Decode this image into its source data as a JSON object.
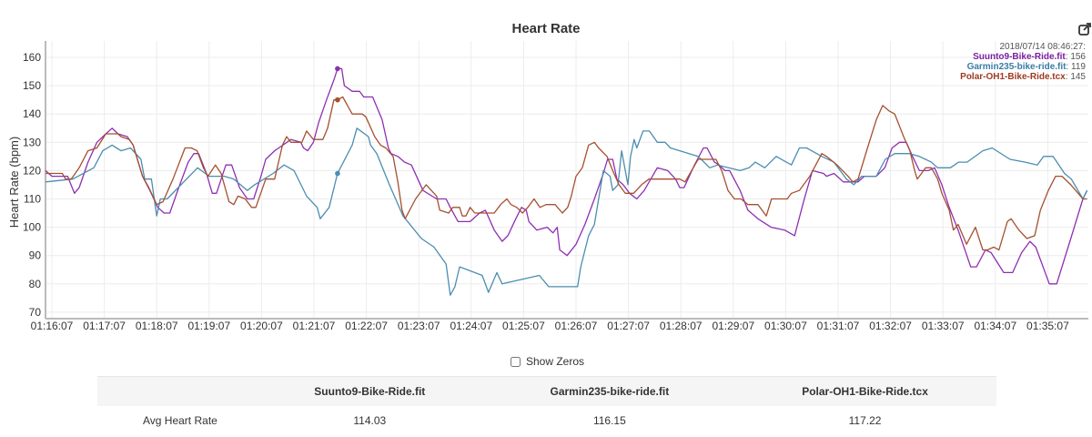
{
  "chart_data": {
    "type": "line",
    "title": "Heart Rate",
    "xlabel": "",
    "ylabel": "Heart Rate (bpm)",
    "x_units": "minutes after 01:16:07",
    "xlim": [
      -0.12,
      19.75
    ],
    "ylim": [
      68,
      165
    ],
    "yticks": [
      70,
      80,
      90,
      100,
      110,
      120,
      130,
      140,
      150,
      160
    ],
    "xtick_labels": [
      "01:16:07",
      "01:17:07",
      "01:18:07",
      "01:19:07",
      "01:20:07",
      "01:21:07",
      "01:22:07",
      "01:23:07",
      "01:24:07",
      "01:25:07",
      "01:26:07",
      "01:27:07",
      "01:28:07",
      "01:29:07",
      "01:30:07",
      "01:31:07",
      "01:32:07",
      "01:33:07",
      "01:34:07",
      "01:35:07"
    ],
    "grid": true,
    "legend_position": "top-right",
    "hover": {
      "time": "2018/07/14 08:46:27:",
      "x": 5.45,
      "values": [
        156,
        119,
        145
      ]
    },
    "series": [
      {
        "name": "Suunto9-Bike-Ride.fit",
        "color": "#8e2fb3",
        "label_color": "#7b1fa2",
        "x": [
          -0.12,
          0,
          0.3,
          0.43,
          0.52,
          0.69,
          0.86,
          1.03,
          1.15,
          1.26,
          1.44,
          1.55,
          1.73,
          1.87,
          2.02,
          2.14,
          2.25,
          2.42,
          2.6,
          2.71,
          2.8,
          2.95,
          3.06,
          3.14,
          3.32,
          3.43,
          3.58,
          3.73,
          3.85,
          3.99,
          4.08,
          4.25,
          4.33,
          4.56,
          4.75,
          4.8,
          4.88,
          4.99,
          5.09,
          5.24,
          5.38,
          5.45,
          5.53,
          5.58,
          5.73,
          5.87,
          5.95,
          6.12,
          6.3,
          6.42,
          6.47,
          6.6,
          6.73,
          6.86,
          7.08,
          7.34,
          7.52,
          7.6,
          7.75,
          7.98,
          8.16,
          8.27,
          8.44,
          8.59,
          8.7,
          8.85,
          8.96,
          9.05,
          9.1,
          9.25,
          9.45,
          9.56,
          9.64,
          9.69,
          9.83,
          10.0,
          10.17,
          10.35,
          10.52,
          10.6,
          10.7,
          10.78,
          10.9,
          11.02,
          11.16,
          11.3,
          11.55,
          11.75,
          11.9,
          11.98,
          12.06,
          12.26,
          12.43,
          12.5,
          12.64,
          12.73,
          12.84,
          12.93,
          13.13,
          13.28,
          13.47,
          13.72,
          13.98,
          14.17,
          14.34,
          14.51,
          14.72,
          14.78,
          14.92,
          15.1,
          15.38,
          15.5,
          15.73,
          15.89,
          16.03,
          16.17,
          16.3,
          16.42,
          16.55,
          16.72,
          16.84,
          16.98,
          17.12,
          17.29,
          17.53,
          17.64,
          17.81,
          17.92,
          18.16,
          18.33,
          18.5,
          18.66,
          18.77,
          19.03,
          19.17,
          19.44,
          19.67,
          19.75
        ],
        "values": [
          120,
          118,
          118,
          112,
          114,
          123,
          130,
          133,
          135,
          133,
          132,
          129,
          118,
          113,
          107,
          105,
          105,
          114,
          123,
          126,
          126,
          119,
          112,
          112,
          122,
          122,
          114,
          110,
          110,
          118,
          124,
          127,
          128,
          131,
          130,
          128,
          127,
          130,
          137,
          145,
          152,
          156,
          156,
          150,
          148,
          148,
          146,
          146,
          138,
          128,
          126,
          125,
          123,
          122,
          113,
          110,
          110,
          107,
          102,
          102,
          105,
          106,
          99,
          95,
          97,
          103,
          107,
          106,
          102,
          99,
          100,
          98,
          100,
          92,
          90,
          94,
          101,
          110,
          119,
          124,
          124,
          117,
          115,
          112,
          110,
          113,
          121,
          120,
          117,
          114,
          114,
          122,
          128,
          128,
          123,
          122,
          120,
          120,
          113,
          106,
          103,
          100,
          99,
          97,
          109,
          120,
          119,
          118,
          119,
          116,
          116,
          118,
          118,
          121,
          128,
          130,
          130,
          125,
          120,
          120,
          121,
          115,
          107,
          99,
          86,
          86,
          92,
          91,
          84,
          84,
          91,
          95,
          93,
          80,
          80,
          96,
          110,
          113
        ]
      },
      {
        "name": "Garmin235-bike-ride.fit",
        "color": "#4b8db0",
        "label_color": "#3a7ca5",
        "x": [
          -0.12,
          0.4,
          0.8,
          0.97,
          1.15,
          1.32,
          1.5,
          1.7,
          1.77,
          1.9,
          2.0,
          2.07,
          2.2,
          2.78,
          3.0,
          3.29,
          3.47,
          3.73,
          3.87,
          4.22,
          4.43,
          4.62,
          4.86,
          5.06,
          5.12,
          5.29,
          5.45,
          5.73,
          5.82,
          6.04,
          6.08,
          6.2,
          6.44,
          6.7,
          7.05,
          7.29,
          7.52,
          7.6,
          7.69,
          7.78,
          8.21,
          8.33,
          8.49,
          8.59,
          9.3,
          9.48,
          10.03,
          10.09,
          10.24,
          10.35,
          10.52,
          10.65,
          10.7,
          10.8,
          10.87,
          10.99,
          11.04,
          11.11,
          11.16,
          11.28,
          11.4,
          11.55,
          11.7,
          11.8,
          11.98,
          12.33,
          12.55,
          12.7,
          13.13,
          13.3,
          13.42,
          13.6,
          13.82,
          14.11,
          14.26,
          14.4,
          14.69,
          14.92,
          15.16,
          15.3,
          15.45,
          15.73,
          15.9,
          16.08,
          16.36,
          16.55,
          16.78,
          16.9,
          17.14,
          17.3,
          17.46,
          17.76,
          17.94,
          18.28,
          18.57,
          18.8,
          18.92,
          19.1,
          19.32,
          19.45,
          19.67,
          19.75
        ],
        "values": [
          116,
          117,
          121,
          127,
          129,
          127,
          128,
          124,
          117,
          117,
          104,
          110,
          110,
          121,
          118,
          118,
          117,
          113,
          115,
          119,
          122,
          120,
          111,
          107,
          103,
          107,
          119,
          129,
          135,
          132,
          129,
          126,
          115,
          104,
          96,
          93,
          87,
          76,
          79,
          86,
          83,
          77,
          84,
          80,
          83,
          79,
          79,
          86,
          97,
          101,
          120,
          118,
          113,
          115,
          127,
          115,
          125,
          131,
          128,
          134,
          134,
          130,
          130,
          128,
          127,
          125,
          121,
          122,
          120,
          121,
          123,
          121,
          125,
          122,
          128,
          128,
          125,
          123,
          117,
          115,
          118,
          118,
          124,
          126,
          126,
          125,
          123,
          121,
          121,
          123,
          123,
          127,
          128,
          124,
          123,
          122,
          125,
          125,
          119,
          117,
          110,
          113
        ]
      },
      {
        "name": "Polar-OH1-Bike-Ride.tcx",
        "color": "#a5502f",
        "label_color": "#9c3a1f",
        "x": [
          -0.12,
          0.2,
          0.26,
          0.37,
          0.52,
          0.69,
          0.86,
          1.03,
          1.26,
          1.32,
          1.48,
          1.55,
          1.73,
          1.85,
          2.0,
          2.12,
          2.31,
          2.54,
          2.66,
          2.77,
          2.89,
          2.98,
          3.12,
          3.23,
          3.38,
          3.47,
          3.55,
          3.69,
          3.81,
          3.89,
          4.08,
          4.25,
          4.4,
          4.48,
          4.56,
          4.77,
          4.86,
          4.99,
          5.17,
          5.26,
          5.38,
          5.45,
          5.55,
          5.73,
          5.92,
          5.99,
          6.16,
          6.27,
          6.37,
          6.51,
          6.6,
          6.68,
          6.74,
          6.94,
          7.14,
          7.34,
          7.4,
          7.57,
          7.65,
          7.78,
          7.83,
          7.9,
          7.98,
          8.07,
          8.21,
          8.44,
          8.56,
          8.68,
          8.76,
          8.87,
          8.98,
          9.08,
          9.2,
          9.31,
          9.43,
          9.6,
          9.74,
          9.84,
          9.91,
          10.0,
          10.12,
          10.24,
          10.35,
          10.43,
          10.59,
          10.7,
          10.82,
          10.94,
          11.1,
          11.25,
          11.39,
          11.56,
          11.67,
          11.98,
          12.08,
          12.33,
          12.67,
          12.78,
          12.9,
          13.02,
          13.15,
          13.28,
          13.47,
          13.63,
          13.73,
          14.03,
          14.11,
          14.26,
          14.46,
          14.69,
          14.78,
          14.98,
          15.19,
          15.28,
          15.38,
          15.56,
          15.73,
          15.85,
          15.98,
          16.08,
          16.25,
          16.37,
          16.46,
          16.51,
          16.67,
          16.78,
          16.9,
          16.98,
          17.12,
          17.2,
          17.29,
          17.45,
          17.62,
          17.76,
          17.85,
          17.97,
          18.07,
          18.23,
          18.3,
          18.45,
          18.6,
          18.75,
          18.86,
          19.01,
          19.15,
          19.27,
          19.44,
          19.67,
          19.75
        ],
        "values": [
          119,
          119,
          117,
          117,
          121,
          127,
          128,
          133,
          133,
          132,
          131,
          129,
          118,
          114,
          108,
          109,
          117,
          128,
          128,
          127,
          121,
          118,
          122,
          119,
          109,
          108,
          111,
          110,
          107,
          107,
          117,
          117,
          129,
          132,
          130,
          130,
          134,
          131,
          131,
          135,
          145,
          145,
          146,
          140,
          140,
          139,
          132,
          129,
          128,
          125,
          116,
          106,
          103,
          110,
          115,
          111,
          106,
          105,
          107,
          107,
          104,
          104,
          107,
          105,
          105,
          105,
          108,
          110,
          108,
          107,
          105,
          107,
          110,
          107,
          108,
          108,
          105,
          107,
          111,
          118,
          121,
          129,
          130,
          128,
          125,
          120,
          115,
          112,
          112,
          115,
          117,
          117,
          117,
          117,
          116,
          124,
          124,
          120,
          113,
          110,
          110,
          108,
          108,
          104,
          110,
          110,
          112,
          113,
          118,
          126,
          125,
          122,
          118,
          116,
          117,
          128,
          138,
          143,
          141,
          140,
          132,
          127,
          120,
          117,
          121,
          121,
          117,
          112,
          106,
          99,
          101,
          94,
          100,
          92,
          92,
          93,
          92,
          102,
          103,
          99,
          96,
          97,
          106,
          113,
          118,
          118,
          115,
          110,
          110
        ]
      }
    ]
  },
  "show_zeros": {
    "label": "Show Zeros",
    "checked": false
  },
  "stats_table": {
    "headers": [
      "",
      "Suunto9-Bike-Ride.fit",
      "Garmin235-bike-ride.fit",
      "Polar-OH1-Bike-Ride.tcx"
    ],
    "rows": [
      {
        "label": "Avg Heart Rate",
        "values": [
          "114.03",
          "116.15",
          "117.22"
        ]
      }
    ]
  },
  "icons": {
    "export": "export-icon"
  }
}
